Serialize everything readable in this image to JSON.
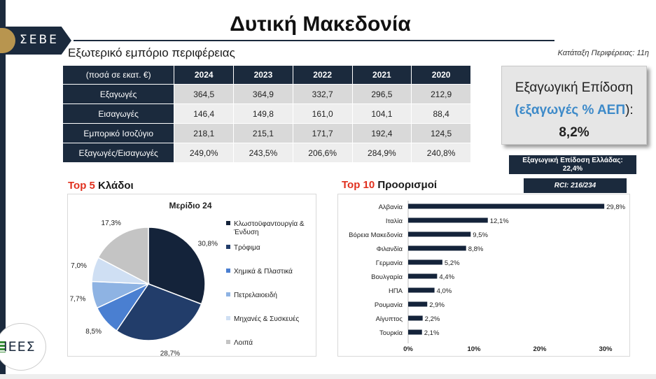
{
  "brand": {
    "seve_text": "ΣΕΒΕ",
    "iees_text": "ΙΕΕΣ"
  },
  "page": {
    "title": "Δυτική Μακεδονία",
    "section_title": "Εξωτερικό εμπόριο περιφέρειας",
    "ranking": "Κατάταξη Περιφέρειας: 11η"
  },
  "trade_table": {
    "corner": "(ποσά σε εκατ. €)",
    "years": [
      "2024",
      "2023",
      "2022",
      "2021",
      "2020"
    ],
    "rows": [
      {
        "label": "Εξαγωγές",
        "values": [
          "364,5",
          "364,9",
          "332,7",
          "296,5",
          "212,9"
        ]
      },
      {
        "label": "Εισαγωγές",
        "values": [
          "146,4",
          "149,8",
          "161,0",
          "104,1",
          "88,4"
        ]
      },
      {
        "label": "Εμπορικό Ισοζύγιο",
        "values": [
          "218,1",
          "215,1",
          "171,7",
          "192,4",
          "124,5"
        ]
      },
      {
        "label": "Εξαγωγές/Εισαγωγές",
        "values": [
          "249,0%",
          "243,5%",
          "206,6%",
          "284,9%",
          "240,8%"
        ]
      }
    ]
  },
  "kpi": {
    "line1": "Εξαγωγική Επίδοση",
    "line2_open": "(",
    "line2_blue": "εξαγωγές % ΑΕΠ",
    "line2_close": "):",
    "value": "8,2%"
  },
  "greece_box": {
    "line1": "Εξαγωγική Επίδοση Ελλάδας:",
    "line2": "22,4%"
  },
  "rci_box": {
    "text": "RCI: 216/234"
  },
  "colors": {
    "navy": "#1b2a3d",
    "accent_red": "#e0301e",
    "accent_blue": "#3d8ac9"
  },
  "pie_section": {
    "heading_red": "Top 5",
    "heading_rest": " Κλάδοι"
  },
  "bar_section": {
    "heading_red": "Top 10",
    "heading_rest": " Προορισμοί"
  },
  "chart_data": [
    {
      "type": "pie",
      "title": "Μερίδιο 24",
      "slices": [
        {
          "label": "Κλωστοϋφαντουργία & Ένδυση",
          "value": 30.8,
          "display": "30,8%",
          "color": "#14233a"
        },
        {
          "label": "Τρόφιμα",
          "value": 28.7,
          "display": "28,7%",
          "color": "#223d6a"
        },
        {
          "label": "Χημικά & Πλαστικά",
          "value": 8.5,
          "display": "8,5%",
          "color": "#4a7fd1"
        },
        {
          "label": "Πετρελαιοειδή",
          "value": 7.7,
          "display": "7,7%",
          "color": "#8eb3e3"
        },
        {
          "label": "Μηχανές & Συσκευές",
          "value": 7.0,
          "display": "7,0%",
          "color": "#cfdff3"
        },
        {
          "label": "Λοιπά",
          "value": 17.3,
          "display": "17,3%",
          "color": "#c4c4c4"
        }
      ],
      "legend_position": "right"
    },
    {
      "type": "bar",
      "orientation": "horizontal",
      "categories": [
        "Αλβανία",
        "Ιταλία",
        "Βόρεια Μακεδονία",
        "Φιλανδία",
        "Γερμανία",
        "Βουλγαρία",
        "ΗΠΑ",
        "Ρουμανία",
        "Αίγυπτος",
        "Τουρκία"
      ],
      "values": [
        29.8,
        12.1,
        9.5,
        8.8,
        5.2,
        4.4,
        4.0,
        2.9,
        2.2,
        2.1
      ],
      "labels": [
        "29,8%",
        "12,1%",
        "9,5%",
        "8,8%",
        "5,2%",
        "4,4%",
        "4,0%",
        "2,9%",
        "2,2%",
        "2,1%"
      ],
      "xlim": [
        0,
        30
      ],
      "xticks": [
        "0%",
        "10%",
        "20%",
        "30%"
      ],
      "bar_color": "#14233a"
    }
  ]
}
